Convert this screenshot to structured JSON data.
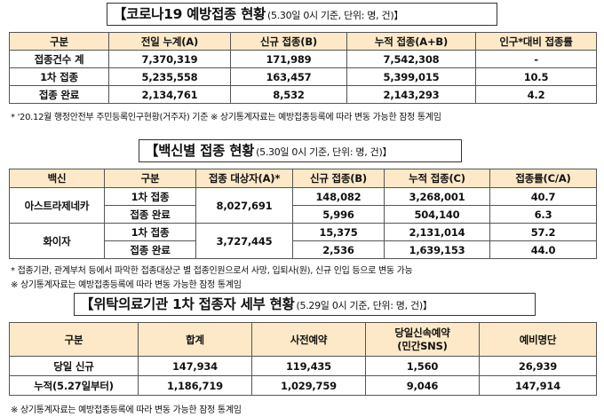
{
  "section1": {
    "title": "【코로나19 예방접종 현황",
    "subtitle": "(5.30일 0시 기준, 단위: 명, 건)】",
    "headers": [
      "구분",
      "전일 누계(A)",
      "신규 접종(B)",
      "누적 접종(A+B)",
      "인구*대비 접종률"
    ],
    "rows": [
      [
        "접종건수 계",
        "7,370,319",
        "171,989",
        "7,542,308",
        "-"
      ],
      [
        "1차 접종",
        "5,235,558",
        "163,457",
        "5,399,015",
        "10.5"
      ],
      [
        "접종 완료",
        "2,134,761",
        "8,532",
        "2,143,293",
        "4.2"
      ]
    ],
    "note": "* '20.12월 행정안전부 주민등록인구현황(거주자) 기준   ※ 상기통계자료는 예방접종등록에 따라 변동 가능한 잠정 통계임"
  },
  "section2": {
    "title": "【백신별 접종 현황",
    "subtitle": "(5.30일 0시 기준, 단위: 명, 건)】",
    "headers": [
      "백신",
      "구분",
      "접종 대상자(A)*",
      "신규 접종(B)",
      "누적 접종(C)",
      "접종률(C/A)"
    ],
    "vaccines": [
      {
        "name": "아스트라제네카",
        "target": "8,027,691",
        "rows": [
          [
            "1차 접종",
            "148,082",
            "3,268,001",
            "40.7"
          ],
          [
            "접종 완료",
            "5,996",
            "504,140",
            "6.3"
          ]
        ]
      },
      {
        "name": "화이자",
        "target": "3,727,445",
        "rows": [
          [
            "1차 접종",
            "15,375",
            "2,131,014",
            "57.2"
          ],
          [
            "접종 완료",
            "2,536",
            "1,639,153",
            "44.0"
          ]
        ]
      }
    ],
    "note1": "* 접종기관, 관계부처 등에서 파악한 접종대상군 별 접종인원으로서 사망, 입퇴사(원), 신규 인입 등으로 변동 가능",
    "note2": "※ 상기통계자료는 예방접종등록에 따라 변동 가능한 잠정 통계임"
  },
  "section3": {
    "title": "【위탁의료기관 1차 접종자 세부 현황",
    "subtitle": "(5.29일 0시 기준, 단위: 명, 건)】",
    "headers": [
      "구분",
      "합계",
      "사전예약",
      "당일신속예약 (민간SNS)",
      "예비명단"
    ],
    "header4_line1": "당일신속예약",
    "header4_line2": "(민간SNS)",
    "rows": [
      [
        "당일 신규",
        "147,934",
        "119,435",
        "1,560",
        "26,939"
      ],
      [
        "누적(5.27일부터)",
        "1,186,719",
        "1,029,759",
        "9,046",
        "147,914"
      ]
    ],
    "note": "※ 상기통계자료는 예방접종등록에 따라 변동 가능한 잠정 통계임"
  },
  "colors": {
    "header_bg": "#fde9c7",
    "border": "#555555"
  }
}
